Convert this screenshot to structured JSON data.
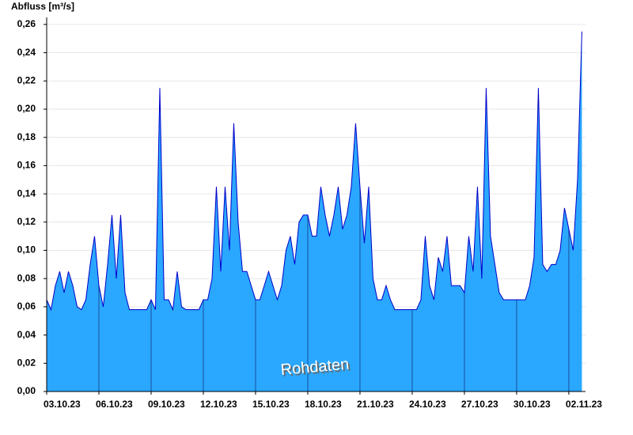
{
  "chart_data": {
    "type": "area",
    "y_label": "Abfluss [m³/s]",
    "annotation": "Rohdaten",
    "color": "#2aa7ff",
    "line_color": "#0000c8",
    "grid": true,
    "xlim": [
      "2023-10-03T00:00",
      "2023-11-02T23:00"
    ],
    "xticks": [
      {
        "value": "2023-10-03T00:00",
        "label": "03.10.23"
      },
      {
        "value": "2023-10-06T00:00",
        "label": "06.10.23"
      },
      {
        "value": "2023-10-09T00:00",
        "label": "09.10.23"
      },
      {
        "value": "2023-10-12T00:00",
        "label": "12.10.23"
      },
      {
        "value": "2023-10-15T00:00",
        "label": "15.10.23"
      },
      {
        "value": "2023-10-18T00:00",
        "label": "18.10.23"
      },
      {
        "value": "2023-10-21T00:00",
        "label": "21.10.23"
      },
      {
        "value": "2023-10-24T00:00",
        "label": "24.10.23"
      },
      {
        "value": "2023-10-27T00:00",
        "label": "27.10.23"
      },
      {
        "value": "2023-10-30T00:00",
        "label": "30.10.23"
      },
      {
        "value": "2023-11-02T00:00",
        "label": "02.11.23"
      }
    ],
    "ylim": [
      0,
      0.265
    ],
    "yticks": [
      {
        "value": 0,
        "label": "0,00"
      },
      {
        "value": 0.02,
        "label": "0,02"
      },
      {
        "value": 0.04,
        "label": "0,04"
      },
      {
        "value": 0.06,
        "label": "0,06"
      },
      {
        "value": 0.08,
        "label": "0,08"
      },
      {
        "value": 0.1,
        "label": "0,10"
      },
      {
        "value": 0.12,
        "label": "0,12"
      },
      {
        "value": 0.14,
        "label": "0,14"
      },
      {
        "value": 0.16,
        "label": "0,16"
      },
      {
        "value": 0.18,
        "label": "0,18"
      },
      {
        "value": 0.2,
        "label": "0,20"
      },
      {
        "value": 0.22,
        "label": "0,22"
      },
      {
        "value": 0.24,
        "label": "0,24"
      },
      {
        "value": 0.26,
        "label": "0,26"
      }
    ],
    "x": [
      "2023-10-03T00:00",
      "2023-10-03T06:00",
      "2023-10-03T12:00",
      "2023-10-03T18:00",
      "2023-10-04T00:00",
      "2023-10-04T06:00",
      "2023-10-04T12:00",
      "2023-10-04T18:00",
      "2023-10-05T00:00",
      "2023-10-05T06:00",
      "2023-10-05T12:00",
      "2023-10-05T18:00",
      "2023-10-06T00:00",
      "2023-10-06T06:00",
      "2023-10-06T12:00",
      "2023-10-06T18:00",
      "2023-10-07T00:00",
      "2023-10-07T06:00",
      "2023-10-07T12:00",
      "2023-10-07T18:00",
      "2023-10-08T00:00",
      "2023-10-08T06:00",
      "2023-10-08T12:00",
      "2023-10-08T18:00",
      "2023-10-09T00:00",
      "2023-10-09T06:00",
      "2023-10-09T12:00",
      "2023-10-09T18:00",
      "2023-10-10T00:00",
      "2023-10-10T06:00",
      "2023-10-10T12:00",
      "2023-10-10T18:00",
      "2023-10-11T00:00",
      "2023-10-11T06:00",
      "2023-10-11T12:00",
      "2023-10-11T18:00",
      "2023-10-12T00:00",
      "2023-10-12T06:00",
      "2023-10-12T12:00",
      "2023-10-12T18:00",
      "2023-10-13T00:00",
      "2023-10-13T06:00",
      "2023-10-13T12:00",
      "2023-10-13T18:00",
      "2023-10-14T00:00",
      "2023-10-14T06:00",
      "2023-10-14T12:00",
      "2023-10-14T18:00",
      "2023-10-15T00:00",
      "2023-10-15T06:00",
      "2023-10-15T12:00",
      "2023-10-15T18:00",
      "2023-10-16T00:00",
      "2023-10-16T06:00",
      "2023-10-16T12:00",
      "2023-10-16T18:00",
      "2023-10-17T00:00",
      "2023-10-17T06:00",
      "2023-10-17T12:00",
      "2023-10-17T18:00",
      "2023-10-18T00:00",
      "2023-10-18T06:00",
      "2023-10-18T12:00",
      "2023-10-18T18:00",
      "2023-10-19T00:00",
      "2023-10-19T06:00",
      "2023-10-19T12:00",
      "2023-10-19T18:00",
      "2023-10-20T00:00",
      "2023-10-20T06:00",
      "2023-10-20T12:00",
      "2023-10-20T18:00",
      "2023-10-21T00:00",
      "2023-10-21T06:00",
      "2023-10-21T12:00",
      "2023-10-21T18:00",
      "2023-10-22T00:00",
      "2023-10-22T06:00",
      "2023-10-22T12:00",
      "2023-10-22T18:00",
      "2023-10-23T00:00",
      "2023-10-23T06:00",
      "2023-10-23T12:00",
      "2023-10-23T18:00",
      "2023-10-24T00:00",
      "2023-10-24T06:00",
      "2023-10-24T12:00",
      "2023-10-24T18:00",
      "2023-10-25T00:00",
      "2023-10-25T06:00",
      "2023-10-25T12:00",
      "2023-10-25T18:00",
      "2023-10-26T00:00",
      "2023-10-26T06:00",
      "2023-10-26T12:00",
      "2023-10-26T18:00",
      "2023-10-27T00:00",
      "2023-10-27T06:00",
      "2023-10-27T12:00",
      "2023-10-27T18:00",
      "2023-10-28T00:00",
      "2023-10-28T06:00",
      "2023-10-28T12:00",
      "2023-10-28T18:00",
      "2023-10-29T00:00",
      "2023-10-29T06:00",
      "2023-10-29T12:00",
      "2023-10-29T18:00",
      "2023-10-30T00:00",
      "2023-10-30T06:00",
      "2023-10-30T12:00",
      "2023-10-30T18:00",
      "2023-10-31T00:00",
      "2023-10-31T06:00",
      "2023-10-31T12:00",
      "2023-10-31T18:00",
      "2023-11-01T00:00",
      "2023-11-01T06:00",
      "2023-11-01T12:00",
      "2023-11-01T18:00",
      "2023-11-02T00:00",
      "2023-11-02T06:00",
      "2023-11-02T12:00",
      "2023-11-02T18:00"
    ],
    "values": [
      0.065,
      0.058,
      0.075,
      0.085,
      0.07,
      0.085,
      0.075,
      0.06,
      0.058,
      0.065,
      0.09,
      0.11,
      0.075,
      0.06,
      0.09,
      0.125,
      0.08,
      0.125,
      0.07,
      0.058,
      0.058,
      0.058,
      0.058,
      0.058,
      0.065,
      0.058,
      0.215,
      0.065,
      0.065,
      0.058,
      0.085,
      0.06,
      0.058,
      0.058,
      0.058,
      0.058,
      0.065,
      0.065,
      0.08,
      0.145,
      0.085,
      0.145,
      0.1,
      0.19,
      0.12,
      0.085,
      0.085,
      0.075,
      0.065,
      0.065,
      0.075,
      0.085,
      0.075,
      0.065,
      0.075,
      0.1,
      0.11,
      0.09,
      0.12,
      0.125,
      0.125,
      0.11,
      0.11,
      0.145,
      0.125,
      0.11,
      0.125,
      0.145,
      0.115,
      0.125,
      0.145,
      0.19,
      0.145,
      0.105,
      0.145,
      0.08,
      0.065,
      0.065,
      0.075,
      0.065,
      0.058,
      0.058,
      0.058,
      0.058,
      0.058,
      0.058,
      0.065,
      0.11,
      0.075,
      0.065,
      0.095,
      0.085,
      0.11,
      0.075,
      0.075,
      0.075,
      0.07,
      0.11,
      0.085,
      0.145,
      0.08,
      0.215,
      0.11,
      0.09,
      0.07,
      0.065,
      0.065,
      0.065,
      0.065,
      0.065,
      0.065,
      0.075,
      0.095,
      0.215,
      0.09,
      0.085,
      0.09,
      0.09,
      0.1,
      0.13,
      0.115,
      0.1,
      0.15,
      0.255
    ]
  }
}
